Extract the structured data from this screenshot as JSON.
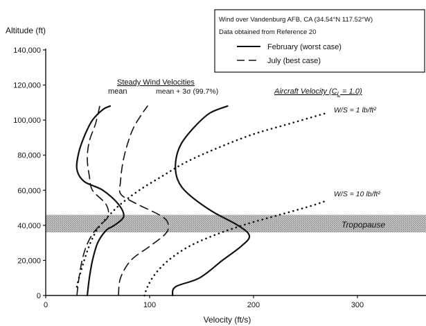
{
  "chart_data": {
    "type": "line",
    "title": "",
    "xlabel": "Velocity (ft/s)",
    "ylabel": "Altitude (ft)",
    "xlim": [
      0,
      350
    ],
    "ylim": [
      0,
      140000
    ],
    "x_ticks": [
      0,
      100,
      200,
      300
    ],
    "x_tick_labels": [
      "0",
      "100",
      "200",
      "300"
    ],
    "y_ticks": [
      0,
      20000,
      40000,
      60000,
      80000,
      100000,
      120000,
      140000
    ],
    "y_tick_labels": [
      "0",
      "20,000",
      "40,000",
      "60,000",
      "80,000",
      "100,000",
      "120,000",
      "140,000"
    ],
    "grid": false,
    "legend": {
      "placement": "top-right",
      "line1": "Wind over Vandenburg AFB, CA (34.54°N 117.52°W)",
      "line2": "Data obtained from Reference 20",
      "feb_label": "February (worst case)",
      "jul_label": "July (best case)"
    },
    "annotations": {
      "steady_title": "Steady Wind Velocities",
      "mean_label": "mean",
      "mean3s_label": "mean + 3σ (99.7%)",
      "aircraft_title": "Aircraft Velocity (C",
      "aircraft_sub": "L",
      "aircraft_tail": " = 1.0)",
      "ws1": "W/S = 1 lb/ft²",
      "ws10": "W/S = 10 lb/ft²",
      "tropopause": "Tropopause"
    },
    "tropopause_band": [
      36000,
      46000
    ],
    "series": [
      {
        "style": "solid",
        "points": [
          [
            40,
            0
          ],
          [
            42,
            10000
          ],
          [
            45,
            20000
          ],
          [
            50,
            30000
          ],
          [
            58,
            37000
          ],
          [
            66,
            40000
          ],
          [
            75,
            45000
          ],
          [
            70,
            52000
          ],
          [
            55,
            60000
          ],
          [
            37,
            65000
          ],
          [
            30,
            72000
          ],
          [
            32,
            82000
          ],
          [
            38,
            92000
          ],
          [
            45,
            100000
          ],
          [
            55,
            106000
          ],
          [
            62,
            108000
          ]
        ]
      },
      {
        "style": "dashed",
        "points": [
          [
            30,
            0
          ],
          [
            32,
            10000
          ],
          [
            35,
            20000
          ],
          [
            39,
            28000
          ],
          [
            45,
            35000
          ],
          [
            52,
            40000
          ],
          [
            60,
            45000
          ],
          [
            58,
            52000
          ],
          [
            45,
            60000
          ],
          [
            42,
            68000
          ],
          [
            40,
            78000
          ],
          [
            42,
            88000
          ],
          [
            48,
            98000
          ],
          [
            52,
            108000
          ]
        ]
      },
      {
        "style": "solid",
        "points": [
          [
            122,
            0
          ],
          [
            125,
            5000
          ],
          [
            148,
            10000
          ],
          [
            170,
            20000
          ],
          [
            188,
            28000
          ],
          [
            196,
            34000
          ],
          [
            185,
            40000
          ],
          [
            160,
            48000
          ],
          [
            137,
            58000
          ],
          [
            127,
            66000
          ],
          [
            125,
            76000
          ],
          [
            130,
            86000
          ],
          [
            143,
            96000
          ],
          [
            158,
            104000
          ],
          [
            175,
            108000
          ]
        ]
      },
      {
        "style": "dashed",
        "points": [
          [
            70,
            0
          ],
          [
            72,
            10000
          ],
          [
            82,
            20000
          ],
          [
            100,
            28000
          ],
          [
            115,
            35000
          ],
          [
            118,
            40000
          ],
          [
            112,
            45000
          ],
          [
            85,
            53000
          ],
          [
            72,
            58000
          ],
          [
            72,
            65000
          ],
          [
            74,
            75000
          ],
          [
            78,
            85000
          ],
          [
            84,
            95000
          ],
          [
            92,
            103000
          ],
          [
            98,
            108000
          ]
        ]
      },
      {
        "style": "dotted",
        "points": [
          [
            30,
            5000
          ],
          [
            32,
            10000
          ],
          [
            37,
            20000
          ],
          [
            43,
            30000
          ],
          [
            50,
            38000
          ],
          [
            60,
            45000
          ],
          [
            72,
            52000
          ],
          [
            90,
            60000
          ],
          [
            112,
            68000
          ],
          [
            135,
            76000
          ],
          [
            165,
            84000
          ],
          [
            200,
            92000
          ],
          [
            235,
            98000
          ],
          [
            270,
            104000
          ]
        ]
      },
      {
        "style": "dotted",
        "points": [
          [
            95,
            0
          ],
          [
            98,
            5000
          ],
          [
            105,
            12000
          ],
          [
            118,
            20000
          ],
          [
            138,
            28000
          ],
          [
            165,
            35000
          ],
          [
            195,
            41000
          ],
          [
            225,
            46000
          ],
          [
            255,
            51000
          ],
          [
            270,
            54000
          ]
        ]
      }
    ]
  }
}
